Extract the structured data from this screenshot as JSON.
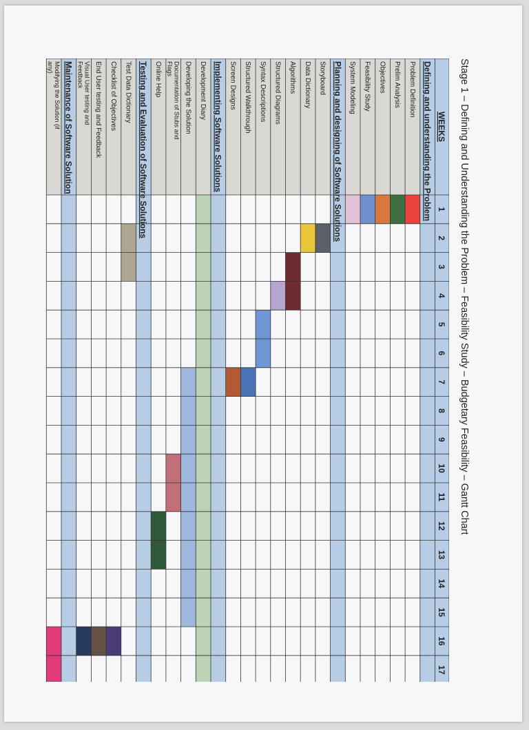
{
  "title": "Stage 1 – Defining and Understanding the Problem – Feasibility Study – Budgetary Feasibility – Gantt Chart",
  "colors": {
    "section_band": "#b7cde6",
    "label_bg": "#d9d8d3",
    "diary_band": "#bcd3b5"
  },
  "chart_data": {
    "type": "gantt",
    "weeks_header": "WEEKS",
    "weeks": [
      "1",
      "2",
      "3",
      "4",
      "5",
      "6",
      "7",
      "8",
      "9",
      "10",
      "11",
      "12",
      "13",
      "14",
      "15",
      "16",
      "17"
    ],
    "rows": [
      {
        "kind": "section",
        "label": "Defining and understanding the Problem"
      },
      {
        "kind": "task",
        "label": "Problem Definition",
        "start": 1,
        "end": 1,
        "color": "#e8443c"
      },
      {
        "kind": "task",
        "label": "Prelim Analysis",
        "start": 1,
        "end": 1,
        "color": "#3d6e41"
      },
      {
        "kind": "task",
        "label": "Objectives",
        "start": 1,
        "end": 1,
        "color": "#d8773e"
      },
      {
        "kind": "task",
        "label": "Feasibility Study",
        "start": 1,
        "end": 1,
        "color": "#6f8fcf"
      },
      {
        "kind": "task",
        "label": "System Modeling",
        "start": 1,
        "end": 1,
        "color": "#e2c2d6"
      },
      {
        "kind": "section",
        "label": "Planning and designing of Software Solutions"
      },
      {
        "kind": "task",
        "label": "Storyboard",
        "start": 2,
        "end": 2,
        "color": "#5c6068"
      },
      {
        "kind": "task",
        "label": "Data Dictionary",
        "start": 2,
        "end": 2,
        "color": "#ebc53a"
      },
      {
        "kind": "task",
        "label": "Algorithms",
        "start": 3,
        "end": 4,
        "color": "#6e2a32"
      },
      {
        "kind": "task",
        "label": "Structured Diagrams",
        "start": 4,
        "end": 4,
        "color": "#b6a4d1"
      },
      {
        "kind": "task",
        "label": "Syntax Descriptions",
        "start": 5,
        "end": 6,
        "color": "#6f95d2"
      },
      {
        "kind": "task",
        "label": "Structured Walkthrough",
        "start": 7,
        "end": 7,
        "color": "#4a74b8"
      },
      {
        "kind": "task",
        "label": "Screen Designs",
        "start": 7,
        "end": 7,
        "color": "#b35a35"
      },
      {
        "kind": "section",
        "label": "Implementing Software Solutions"
      },
      {
        "kind": "task",
        "label": "Development Diary",
        "start": 1,
        "end": 17,
        "color": "#bcd3b5"
      },
      {
        "kind": "task",
        "label": "Developing the Solution",
        "start": 7,
        "end": 15,
        "color": "#9fb6df"
      },
      {
        "kind": "task",
        "label": "Documentation of Stubs and Flags",
        "start": 10,
        "end": 11,
        "color": "#c27078"
      },
      {
        "kind": "task",
        "label": "Online Help",
        "start": 12,
        "end": 13,
        "color": "#2f5939"
      },
      {
        "kind": "section",
        "label": "Testing and Evaluation of Software Solutions"
      },
      {
        "kind": "task",
        "label": "Test Data Dictionary",
        "start": 2,
        "end": 3,
        "color": "#aea690"
      },
      {
        "kind": "task",
        "label": "Checklist of Objectives",
        "start": 16,
        "end": 16,
        "color": "#4a3c78"
      },
      {
        "kind": "task",
        "label": "End User testing and Feedback",
        "start": 16,
        "end": 16,
        "color": "#635046"
      },
      {
        "kind": "task",
        "label": "Visual User testing and Feedback",
        "start": 16,
        "end": 16,
        "color": "#27395c"
      },
      {
        "kind": "section",
        "label": "Maintenance of Software Solution"
      },
      {
        "kind": "task",
        "label": "Modifying the Solution (if any)",
        "start": 16,
        "end": 17,
        "color": "#e03c7c"
      }
    ]
  }
}
